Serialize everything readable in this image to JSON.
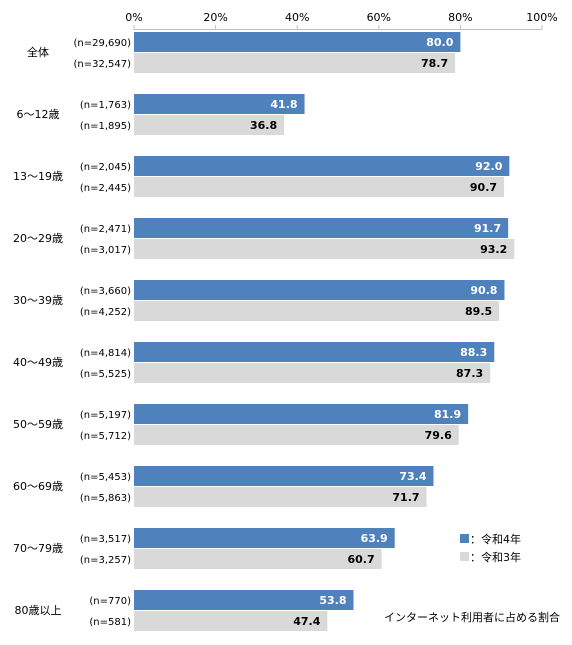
{
  "chart_data": {
    "type": "bar",
    "orientation": "horizontal",
    "x_axis": {
      "min": 0,
      "max": 100,
      "ticks": [
        "0%",
        "20%",
        "40%",
        "60%",
        "80%",
        "100%"
      ],
      "tick_values": [
        0,
        20,
        40,
        60,
        80,
        100
      ]
    },
    "grid": false,
    "legend_position": "bottom-right",
    "categories": [
      "全体",
      "6～12歳",
      "13～19歳",
      "20～29歳",
      "30～39歳",
      "40～49歳",
      "50～59歳",
      "60～69歳",
      "70～79歳",
      "80歳以上"
    ],
    "series": [
      {
        "name": "令和4年",
        "color": "#4f81bd",
        "values": [
          80.0,
          41.8,
          92.0,
          91.7,
          90.8,
          88.3,
          81.9,
          73.4,
          63.9,
          53.8
        ],
        "value_labels": [
          "80.0",
          "41.8",
          "92.0",
          "91.7",
          "90.8",
          "88.3",
          "81.9",
          "73.4",
          "63.9",
          "53.8"
        ],
        "n_labels": [
          "(n=29,690)",
          "(n=1,763)",
          "(n=2,045)",
          "(n=2,471)",
          "(n=3,660)",
          "(n=4,814)",
          "(n=5,197)",
          "(n=5,453)",
          "(n=3,517)",
          "(n=770)"
        ]
      },
      {
        "name": "令和3年",
        "color": "#d9d9d9",
        "values": [
          78.7,
          36.8,
          90.7,
          93.2,
          89.5,
          87.3,
          79.6,
          71.7,
          60.7,
          47.4
        ],
        "value_labels": [
          "78.7",
          "36.8",
          "90.7",
          "93.2",
          "89.5",
          "87.3",
          "79.6",
          "71.7",
          "60.7",
          "47.4"
        ],
        "n_labels": [
          "(n=32,547)",
          "(n=1,895)",
          "(n=2,445)",
          "(n=3,017)",
          "(n=4,252)",
          "(n=5,525)",
          "(n=5,712)",
          "(n=5,863)",
          "(n=3,257)",
          "(n=581)"
        ]
      }
    ],
    "legend": [
      {
        "label": "：令和4年",
        "color": "#4f81bd"
      },
      {
        "label": "：令和3年",
        "color": "#d9d9d9"
      }
    ],
    "annotation": "インターネット利用者に占める割合"
  }
}
